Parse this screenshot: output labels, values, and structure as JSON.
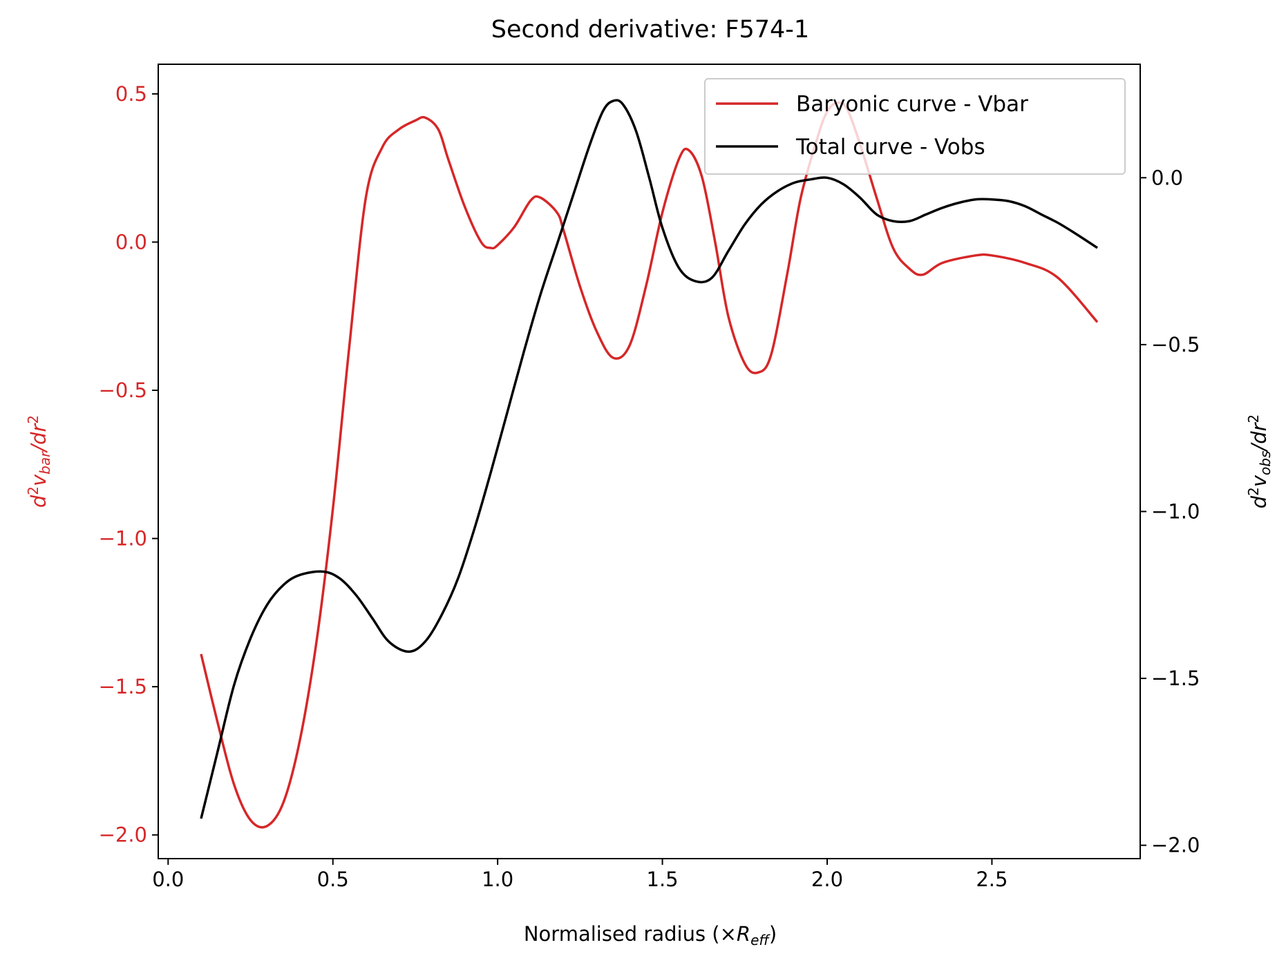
{
  "chart_data": {
    "type": "line",
    "title": "Second derivative: F574-1",
    "xlabel": {
      "base": "Normalised radius (×",
      "italic": "R",
      "sub": "eff",
      "tail": ")"
    },
    "ylabel_left": {
      "pre": "d",
      "sup1": "2",
      "v": "v",
      "sub": "bar",
      "post": "/dr",
      "sup2": "2"
    },
    "ylabel_right": {
      "pre": "d",
      "sup1": "2",
      "v": "v",
      "sub": "obs",
      "post": "/dr",
      "sup2": "2"
    },
    "xlim": [
      -0.03,
      2.95
    ],
    "ylim_left": [
      -2.08,
      0.6
    ],
    "ylim_right": [
      -2.04,
      0.34
    ],
    "x_ticks": [
      "0.0",
      "0.5",
      "1.0",
      "1.5",
      "2.0",
      "2.5"
    ],
    "y_left_ticks": [
      "0.5",
      "0.0",
      "−0.5",
      "−1.0",
      "−1.5",
      "−2.0"
    ],
    "y_right_ticks": [
      "0.0",
      "−0.5",
      "−1.0",
      "−1.5",
      "−2.0"
    ],
    "legend_position": "top-right",
    "colors": {
      "bar": "#d62728",
      "obs": "#000000"
    },
    "series": [
      {
        "name": "Baryonic curve - Vbar",
        "axis": "left",
        "color": "#d62728",
        "points": [
          [
            0.1,
            -1.39
          ],
          [
            0.15,
            -1.62
          ],
          [
            0.2,
            -1.83
          ],
          [
            0.25,
            -1.95
          ],
          [
            0.3,
            -1.97
          ],
          [
            0.35,
            -1.89
          ],
          [
            0.4,
            -1.68
          ],
          [
            0.45,
            -1.35
          ],
          [
            0.5,
            -0.9
          ],
          [
            0.55,
            -0.35
          ],
          [
            0.6,
            0.15
          ],
          [
            0.65,
            0.32
          ],
          [
            0.7,
            0.38
          ],
          [
            0.75,
            0.41
          ],
          [
            0.78,
            0.42
          ],
          [
            0.82,
            0.38
          ],
          [
            0.85,
            0.28
          ],
          [
            0.9,
            0.12
          ],
          [
            0.95,
            0.0
          ],
          [
            0.98,
            -0.02
          ],
          [
            1.0,
            -0.01
          ],
          [
            1.05,
            0.05
          ],
          [
            1.1,
            0.14
          ],
          [
            1.13,
            0.15
          ],
          [
            1.18,
            0.1
          ],
          [
            1.2,
            0.04
          ],
          [
            1.25,
            -0.15
          ],
          [
            1.3,
            -0.3
          ],
          [
            1.35,
            -0.39
          ],
          [
            1.4,
            -0.35
          ],
          [
            1.45,
            -0.15
          ],
          [
            1.5,
            0.1
          ],
          [
            1.55,
            0.28
          ],
          [
            1.58,
            0.31
          ],
          [
            1.62,
            0.22
          ],
          [
            1.66,
            0.0
          ],
          [
            1.7,
            -0.25
          ],
          [
            1.75,
            -0.41
          ],
          [
            1.79,
            -0.44
          ],
          [
            1.83,
            -0.38
          ],
          [
            1.88,
            -0.1
          ],
          [
            1.92,
            0.15
          ],
          [
            1.97,
            0.35
          ],
          [
            2.0,
            0.44
          ],
          [
            2.03,
            0.47
          ],
          [
            2.06,
            0.45
          ],
          [
            2.1,
            0.33
          ],
          [
            2.15,
            0.15
          ],
          [
            2.2,
            -0.02
          ],
          [
            2.25,
            -0.09
          ],
          [
            2.29,
            -0.11
          ],
          [
            2.35,
            -0.07
          ],
          [
            2.45,
            -0.045
          ],
          [
            2.5,
            -0.045
          ],
          [
            2.6,
            -0.07
          ],
          [
            2.7,
            -0.12
          ],
          [
            2.82,
            -0.27
          ]
        ]
      },
      {
        "name": "Total curve - Vobs",
        "axis": "right",
        "color": "#000000",
        "points": [
          [
            0.1,
            -1.92
          ],
          [
            0.15,
            -1.72
          ],
          [
            0.2,
            -1.52
          ],
          [
            0.25,
            -1.38
          ],
          [
            0.3,
            -1.28
          ],
          [
            0.35,
            -1.22
          ],
          [
            0.4,
            -1.19
          ],
          [
            0.47,
            -1.18
          ],
          [
            0.52,
            -1.2
          ],
          [
            0.57,
            -1.25
          ],
          [
            0.62,
            -1.32
          ],
          [
            0.67,
            -1.39
          ],
          [
            0.73,
            -1.42
          ],
          [
            0.78,
            -1.39
          ],
          [
            0.83,
            -1.31
          ],
          [
            0.88,
            -1.2
          ],
          [
            0.93,
            -1.05
          ],
          [
            0.98,
            -0.88
          ],
          [
            1.03,
            -0.7
          ],
          [
            1.08,
            -0.52
          ],
          [
            1.13,
            -0.35
          ],
          [
            1.18,
            -0.2
          ],
          [
            1.23,
            -0.05
          ],
          [
            1.28,
            0.1
          ],
          [
            1.32,
            0.2
          ],
          [
            1.35,
            0.23
          ],
          [
            1.38,
            0.22
          ],
          [
            1.42,
            0.14
          ],
          [
            1.46,
            0.0
          ],
          [
            1.5,
            -0.15
          ],
          [
            1.55,
            -0.27
          ],
          [
            1.6,
            -0.31
          ],
          [
            1.65,
            -0.3
          ],
          [
            1.7,
            -0.22
          ],
          [
            1.75,
            -0.14
          ],
          [
            1.8,
            -0.08
          ],
          [
            1.85,
            -0.04
          ],
          [
            1.9,
            -0.015
          ],
          [
            1.95,
            -0.005
          ],
          [
            2.0,
            0.0
          ],
          [
            2.05,
            -0.02
          ],
          [
            2.1,
            -0.06
          ],
          [
            2.15,
            -0.11
          ],
          [
            2.2,
            -0.13
          ],
          [
            2.25,
            -0.13
          ],
          [
            2.3,
            -0.11
          ],
          [
            2.35,
            -0.09
          ],
          [
            2.4,
            -0.075
          ],
          [
            2.45,
            -0.065
          ],
          [
            2.5,
            -0.065
          ],
          [
            2.55,
            -0.07
          ],
          [
            2.6,
            -0.085
          ],
          [
            2.65,
            -0.11
          ],
          [
            2.7,
            -0.135
          ],
          [
            2.75,
            -0.165
          ],
          [
            2.82,
            -0.21
          ]
        ]
      }
    ]
  }
}
